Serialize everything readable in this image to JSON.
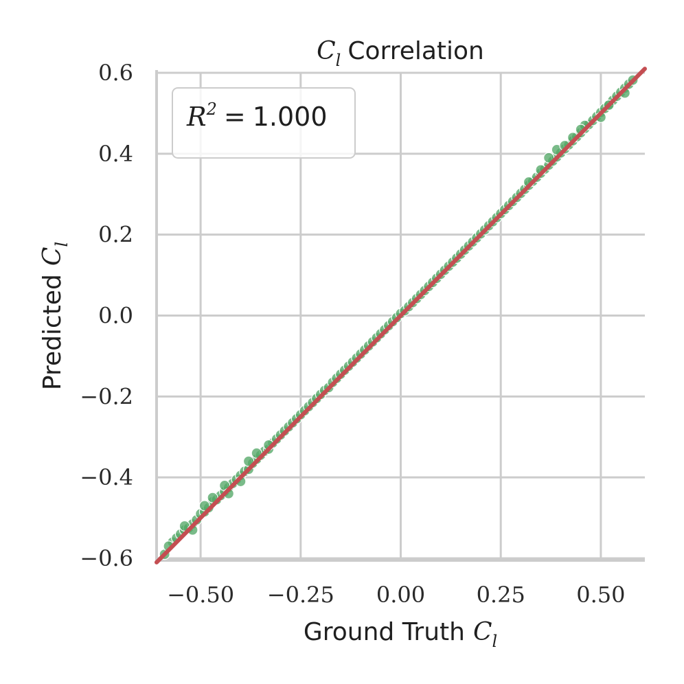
{
  "chart_data": {
    "type": "scatter",
    "title_symbol": "C",
    "title_subscript": "l",
    "title_text": "Correlation",
    "xlabel_text": "Ground Truth",
    "xlabel_symbol": "C",
    "xlabel_subscript": "l",
    "ylabel_text": "Predicted",
    "ylabel_symbol": "C",
    "ylabel_subscript": "l",
    "xlim": [
      -0.61,
      0.61
    ],
    "ylim": [
      -0.6,
      0.6
    ],
    "xticks": [
      -0.5,
      -0.25,
      0.0,
      0.25,
      0.5
    ],
    "xtick_labels": [
      "−0.50",
      "−0.25",
      "0.00",
      "0.25",
      "0.50"
    ],
    "yticks": [
      -0.6,
      -0.4,
      -0.2,
      0.0,
      0.2,
      0.4,
      0.6
    ],
    "ytick_labels": [
      "−0.6",
      "−0.4",
      "−0.2",
      "0.0",
      "0.2",
      "0.4",
      "0.6"
    ],
    "grid": true,
    "legend_placement": "top-left",
    "annotation": {
      "symbol": "R",
      "superscript": "2",
      "operator": "=",
      "value": "1.000"
    },
    "colors": {
      "points": "#55a868",
      "line": "#c44e52",
      "grid": "#cccccc",
      "spine": "#cccccc"
    },
    "series": [
      {
        "kind": "points",
        "x": [
          -0.59,
          -0.57,
          -0.56,
          -0.55,
          -0.54,
          -0.53,
          -0.52,
          -0.51,
          -0.5,
          -0.49,
          -0.48,
          -0.47,
          -0.46,
          -0.45,
          -0.44,
          -0.43,
          -0.42,
          -0.41,
          -0.4,
          -0.39,
          -0.38,
          -0.37,
          -0.36,
          -0.35,
          -0.34,
          -0.33,
          -0.32,
          -0.31,
          -0.3,
          -0.29,
          -0.28,
          -0.27,
          -0.26,
          -0.25,
          -0.24,
          -0.23,
          -0.22,
          -0.21,
          -0.2,
          -0.19,
          -0.18,
          -0.17,
          -0.16,
          -0.15,
          -0.14,
          -0.13,
          -0.12,
          -0.11,
          -0.1,
          -0.09,
          -0.08,
          -0.07,
          -0.06,
          -0.05,
          -0.04,
          -0.03,
          -0.02,
          -0.01,
          0.0,
          0.01,
          0.02,
          0.03,
          0.04,
          0.05,
          0.06,
          0.07,
          0.08,
          0.09,
          0.1,
          0.11,
          0.12,
          0.13,
          0.14,
          0.15,
          0.16,
          0.17,
          0.18,
          0.19,
          0.2,
          0.21,
          0.22,
          0.23,
          0.24,
          0.25,
          0.26,
          0.27,
          0.28,
          0.29,
          0.3,
          0.31,
          0.32,
          0.33,
          0.34,
          0.35,
          0.36,
          0.37,
          0.38,
          0.39,
          0.4,
          0.41,
          0.42,
          0.43,
          0.44,
          0.45,
          0.46,
          0.47,
          0.48,
          0.49,
          0.5,
          0.51,
          0.52,
          0.53,
          0.54,
          0.55,
          0.56,
          0.57,
          0.58,
          -0.58,
          -0.54,
          -0.49,
          -0.47,
          -0.44,
          -0.4,
          -0.38,
          -0.36,
          -0.33,
          0.32,
          0.35,
          0.37,
          0.39,
          0.41,
          0.43,
          0.46,
          0.52,
          0.56,
          -0.52,
          -0.43,
          0.45,
          0.5
        ],
        "y": [
          -0.59,
          -0.56,
          -0.55,
          -0.54,
          -0.53,
          -0.525,
          -0.515,
          -0.505,
          -0.49,
          -0.485,
          -0.475,
          -0.46,
          -0.455,
          -0.445,
          -0.435,
          -0.425,
          -0.415,
          -0.405,
          -0.395,
          -0.385,
          -0.38,
          -0.365,
          -0.355,
          -0.345,
          -0.335,
          -0.33,
          -0.315,
          -0.305,
          -0.295,
          -0.285,
          -0.275,
          -0.265,
          -0.255,
          -0.245,
          -0.235,
          -0.225,
          -0.215,
          -0.205,
          -0.195,
          -0.185,
          -0.178,
          -0.165,
          -0.155,
          -0.145,
          -0.135,
          -0.125,
          -0.115,
          -0.105,
          -0.095,
          -0.085,
          -0.075,
          -0.065,
          -0.055,
          -0.045,
          -0.035,
          -0.025,
          -0.015,
          -0.005,
          0.005,
          0.012,
          0.022,
          0.032,
          0.042,
          0.052,
          0.062,
          0.072,
          0.082,
          0.092,
          0.102,
          0.112,
          0.122,
          0.132,
          0.142,
          0.152,
          0.162,
          0.172,
          0.182,
          0.192,
          0.202,
          0.212,
          0.222,
          0.232,
          0.242,
          0.252,
          0.262,
          0.272,
          0.282,
          0.292,
          0.302,
          0.312,
          0.322,
          0.332,
          0.342,
          0.352,
          0.362,
          0.372,
          0.382,
          0.392,
          0.402,
          0.412,
          0.422,
          0.432,
          0.442,
          0.452,
          0.462,
          0.472,
          0.482,
          0.492,
          0.502,
          0.512,
          0.522,
          0.532,
          0.542,
          0.552,
          0.562,
          0.572,
          0.582,
          -0.57,
          -0.52,
          -0.47,
          -0.45,
          -0.42,
          -0.41,
          -0.36,
          -0.34,
          -0.32,
          0.33,
          0.36,
          0.39,
          0.41,
          0.42,
          0.44,
          0.47,
          0.52,
          0.55,
          -0.53,
          -0.44,
          0.46,
          0.49
        ]
      },
      {
        "kind": "reference_line",
        "x": [
          -0.61,
          0.61
        ],
        "y": [
          -0.61,
          0.61
        ]
      }
    ]
  }
}
